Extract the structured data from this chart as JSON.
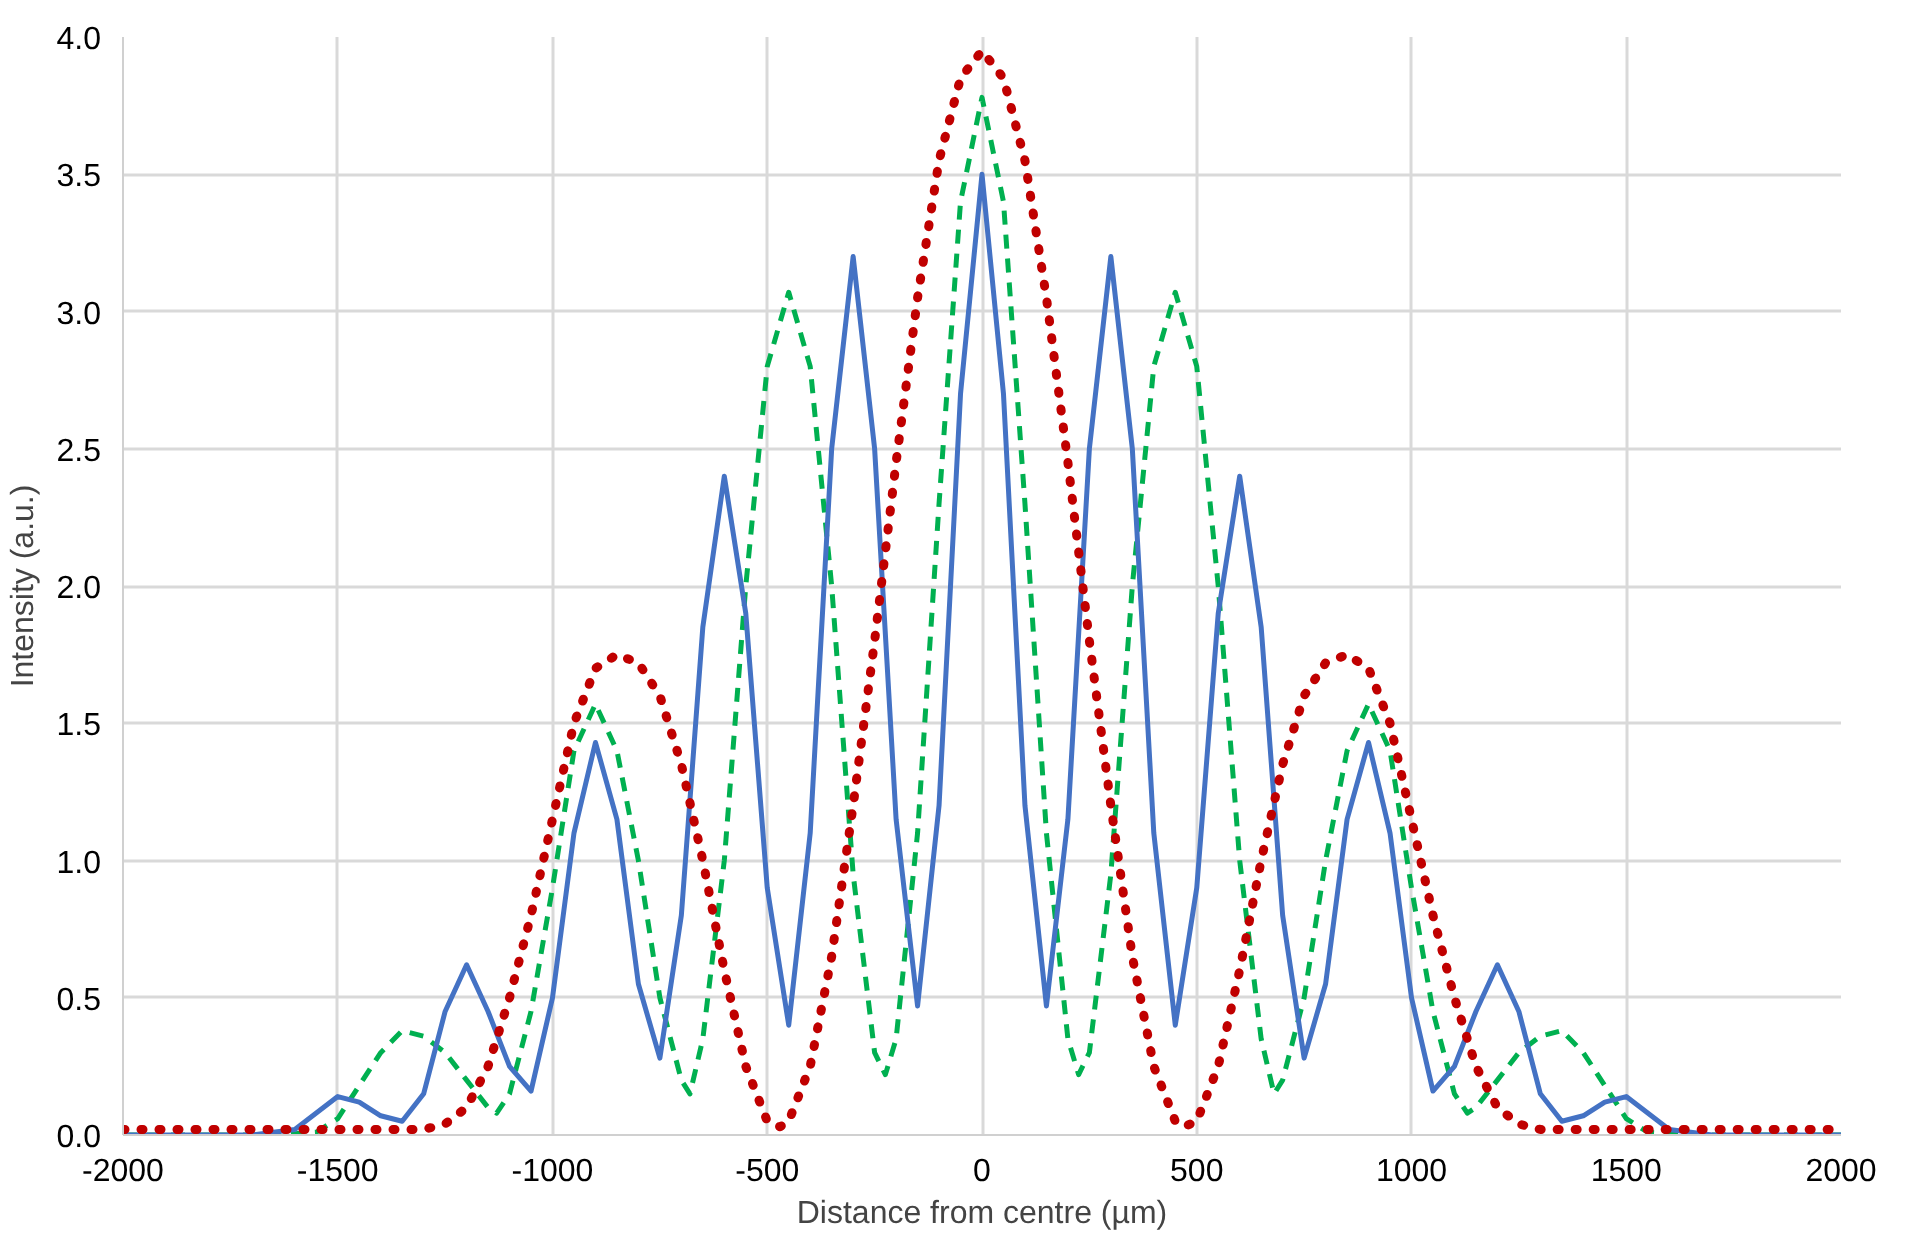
{
  "chart_data": {
    "type": "line",
    "xlabel": "Distance from centre (µm)",
    "ylabel": "Intensity (a.u.)",
    "xlim": [
      -2000,
      2000
    ],
    "xticks": [
      -2000,
      -1500,
      -1000,
      -500,
      0,
      500,
      1000,
      1500,
      2000
    ],
    "ylim": [
      0,
      4
    ],
    "yticks": [
      {
        "value": 0,
        "label": "0.0"
      },
      {
        "value": 0.5,
        "label": "0.5"
      },
      {
        "value": 1,
        "label": "1.0"
      },
      {
        "value": 1.5,
        "label": "1.5"
      },
      {
        "value": 2,
        "label": "2.0"
      },
      {
        "value": 2.5,
        "label": "2.5"
      },
      {
        "value": 3,
        "label": "3.0"
      },
      {
        "value": 3.5,
        "label": "3.5"
      },
      {
        "value": 4,
        "label": "4.0"
      }
    ],
    "grid": true,
    "marker": "none",
    "series": [
      {
        "color": "#00b050",
        "line_style": "dashed",
        "x": [
          -2000,
          -1650,
          -1550,
          -1500,
          -1450,
          -1400,
          -1350,
          -1300,
          -1250,
          -1200,
          -1150,
          -1130,
          -1100,
          -1050,
          -1000,
          -950,
          -900,
          -850,
          -800,
          -750,
          -700,
          -680,
          -650,
          -600,
          -550,
          -500,
          -450,
          -400,
          -350,
          -300,
          -250,
          -225,
          -200,
          -150,
          -100,
          -50,
          0,
          50,
          100,
          150,
          200,
          225,
          250,
          300,
          350,
          400,
          450,
          500,
          550,
          600,
          650,
          680,
          700,
          750,
          800,
          850,
          900,
          950,
          1000,
          1050,
          1100,
          1130,
          1150,
          1200,
          1250,
          1300,
          1350,
          1400,
          1450,
          1500,
          1550,
          1650,
          2000
        ],
        "values": [
          0,
          0,
          0.01,
          0.06,
          0.18,
          0.3,
          0.38,
          0.36,
          0.3,
          0.2,
          0.1,
          0.08,
          0.15,
          0.45,
          0.9,
          1.4,
          1.57,
          1.4,
          1.0,
          0.5,
          0.2,
          0.15,
          0.35,
          1.0,
          2.0,
          2.8,
          3.07,
          2.8,
          2.0,
          0.95,
          0.3,
          0.22,
          0.35,
          1.1,
          2.3,
          3.4,
          3.78,
          3.4,
          2.3,
          1.1,
          0.35,
          0.22,
          0.3,
          0.95,
          2.0,
          2.8,
          3.07,
          2.8,
          2.0,
          1.0,
          0.35,
          0.15,
          0.2,
          0.5,
          1.0,
          1.4,
          1.57,
          1.4,
          0.9,
          0.45,
          0.15,
          0.08,
          0.1,
          0.2,
          0.3,
          0.36,
          0.38,
          0.3,
          0.18,
          0.06,
          0.01,
          0,
          0
        ]
      },
      {
        "color": "#4472c4",
        "line_style": "solid",
        "x": [
          -2000,
          -1700,
          -1600,
          -1550,
          -1500,
          -1450,
          -1400,
          -1350,
          -1300,
          -1250,
          -1200,
          -1150,
          -1100,
          -1050,
          -1000,
          -950,
          -900,
          -850,
          -800,
          -750,
          -700,
          -650,
          -600,
          -550,
          -500,
          -450,
          -400,
          -350,
          -300,
          -250,
          -200,
          -150,
          -100,
          -50,
          0,
          50,
          100,
          150,
          200,
          250,
          300,
          350,
          400,
          450,
          500,
          550,
          600,
          650,
          700,
          750,
          800,
          850,
          900,
          950,
          1000,
          1050,
          1100,
          1150,
          1200,
          1250,
          1300,
          1350,
          1400,
          1450,
          1500,
          1550,
          1600,
          1700,
          2000
        ],
        "values": [
          0,
          0,
          0.02,
          0.08,
          0.14,
          0.12,
          0.07,
          0.05,
          0.15,
          0.45,
          0.62,
          0.45,
          0.25,
          0.16,
          0.5,
          1.1,
          1.43,
          1.15,
          0.55,
          0.28,
          0.8,
          1.85,
          2.4,
          1.9,
          0.9,
          0.4,
          1.1,
          2.5,
          3.2,
          2.5,
          1.15,
          0.47,
          1.2,
          2.7,
          3.5,
          2.7,
          1.2,
          0.47,
          1.15,
          2.5,
          3.2,
          2.5,
          1.1,
          0.4,
          0.9,
          1.9,
          2.4,
          1.85,
          0.8,
          0.28,
          0.55,
          1.15,
          1.43,
          1.1,
          0.5,
          0.16,
          0.25,
          0.45,
          0.62,
          0.45,
          0.15,
          0.05,
          0.07,
          0.12,
          0.14,
          0.08,
          0.02,
          0,
          0
        ]
      },
      {
        "color": "#c00000",
        "line_style": "dotted",
        "x": [
          -2000,
          -1500,
          -1300,
          -1250,
          -1200,
          -1150,
          -1100,
          -1050,
          -1000,
          -950,
          -900,
          -850,
          -800,
          -750,
          -700,
          -650,
          -600,
          -550,
          -500,
          -470,
          -450,
          -400,
          -350,
          -300,
          -250,
          -200,
          -150,
          -100,
          -50,
          0,
          50,
          100,
          150,
          200,
          250,
          300,
          350,
          400,
          450,
          470,
          500,
          550,
          600,
          650,
          700,
          750,
          800,
          850,
          900,
          950,
          1000,
          1050,
          1100,
          1150,
          1200,
          1250,
          1300,
          1500,
          2000
        ],
        "values": [
          0.02,
          0.02,
          0.02,
          0.04,
          0.1,
          0.25,
          0.5,
          0.8,
          1.15,
          1.5,
          1.7,
          1.75,
          1.72,
          1.6,
          1.35,
          1.0,
          0.6,
          0.25,
          0.05,
          0.03,
          0.05,
          0.25,
          0.65,
          1.2,
          1.8,
          2.45,
          3.05,
          3.55,
          3.85,
          3.95,
          3.85,
          3.55,
          3.05,
          2.45,
          1.8,
          1.2,
          0.65,
          0.25,
          0.05,
          0.03,
          0.05,
          0.25,
          0.6,
          1.0,
          1.35,
          1.6,
          1.72,
          1.75,
          1.7,
          1.5,
          1.15,
          0.8,
          0.5,
          0.25,
          0.1,
          0.04,
          0.02,
          0.02,
          0.02
        ]
      }
    ]
  }
}
